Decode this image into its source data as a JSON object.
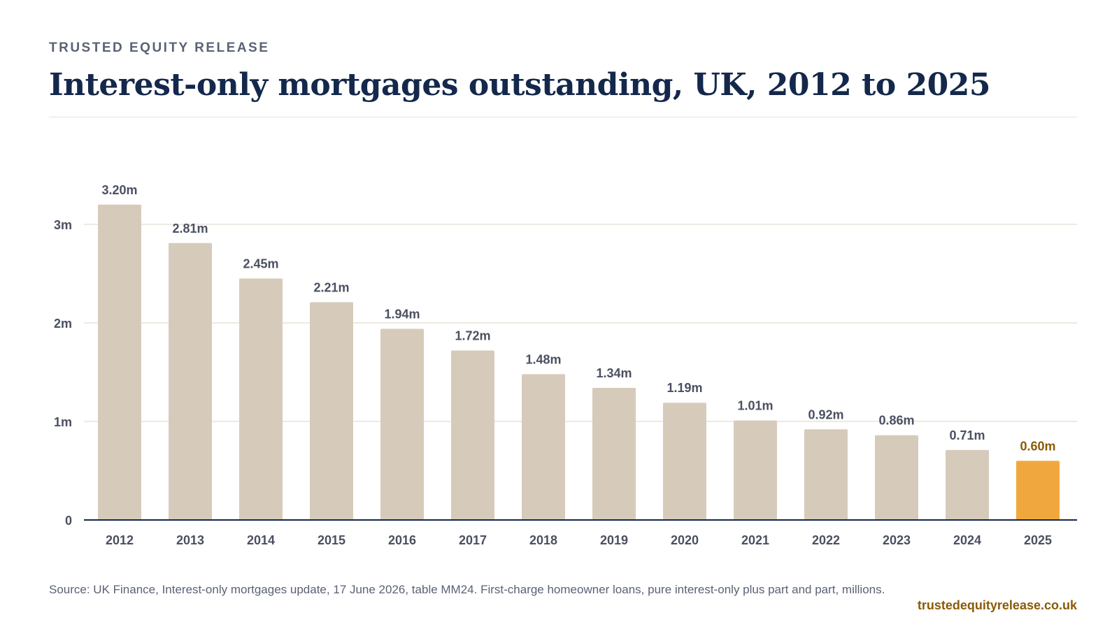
{
  "header": {
    "brand": "TRUSTED EQUITY RELEASE",
    "title": "Interest-only mortgages outstanding, UK, 2012 to 2025"
  },
  "chart_data": {
    "type": "bar",
    "categories": [
      "2012",
      "2013",
      "2014",
      "2015",
      "2016",
      "2017",
      "2018",
      "2019",
      "2020",
      "2021",
      "2022",
      "2023",
      "2024",
      "2025"
    ],
    "values": [
      3.2,
      2.81,
      2.45,
      2.21,
      1.94,
      1.72,
      1.48,
      1.34,
      1.19,
      1.01,
      0.92,
      0.86,
      0.71,
      0.6
    ],
    "value_labels": [
      "3.20m",
      "2.81m",
      "2.45m",
      "2.21m",
      "1.94m",
      "1.72m",
      "1.48m",
      "1.34m",
      "1.19m",
      "1.01m",
      "0.92m",
      "0.86m",
      "0.71m",
      "0.60m"
    ],
    "highlight_index": 13,
    "ylim": [
      0,
      3.2
    ],
    "yticks": [
      0,
      1,
      2,
      3
    ],
    "ytick_labels": [
      "0",
      "1m",
      "2m",
      "3m"
    ],
    "grid": true,
    "colors": {
      "bar": "#d6cbbb",
      "highlight": "#f0a83e",
      "highlight_label": "#8a5a06",
      "label": "#4a5060",
      "axis": "#14284b",
      "grid": "#e6e4d8"
    }
  },
  "footer": {
    "source": "Source: UK Finance, Interest-only mortgages update, 17 June 2026, table MM24. First-charge homeowner loans, pure interest-only plus part and part, millions.",
    "url": "trustedequityrelease.co.uk"
  }
}
